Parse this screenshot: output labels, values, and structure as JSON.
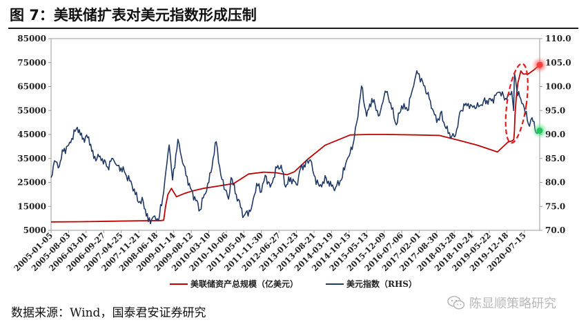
{
  "title": "图 7：美联储扩表对美元指数形成压制",
  "source": "数据来源：Wind，国泰君安证券研究",
  "watermark": "陈显顺策略研究",
  "chart_data": {
    "type": "line",
    "title": "",
    "xlabel": "",
    "y_left": {
      "ylim": [
        5000,
        85000
      ],
      "ticks": [
        "5000",
        "15000",
        "25000",
        "35000",
        "45000",
        "55000",
        "65000",
        "75000",
        "85000"
      ]
    },
    "y_right": {
      "ylim": [
        70.0,
        110.0
      ],
      "ticks": [
        "70.0",
        "75.0",
        "80.0",
        "85.0",
        "90.0",
        "95.0",
        "100.0",
        "105.0",
        "110.0"
      ]
    },
    "x_range": [
      "2005-01-05",
      "2021-01-15"
    ],
    "x_ticks": [
      "2005-01-05",
      "2005-08-03",
      "2006-03-01",
      "2006-09-27",
      "2007-04-25",
      "2007-11-21",
      "2008-06-18",
      "2009-01-14",
      "2009-08-12",
      "2010-03-10",
      "2010-10-06",
      "2011-05-04",
      "2011-11-30",
      "2012-06-27",
      "2013-01-23",
      "2013-08-21",
      "2014-03-19",
      "2014-10-15",
      "2015-05-13",
      "2015-12-09",
      "2016-07-06",
      "2017-02-01",
      "2017-08-30",
      "2018-03-28",
      "2018-10-24",
      "2019-05-22",
      "2019-12-18",
      "2020-07-15"
    ],
    "legend_position": "bottom",
    "series": [
      {
        "name": "美联储资产总规模（亿美元）",
        "axis": "left",
        "color": "#c00000",
        "points": [
          [
            "2005-01-05",
            8500
          ],
          [
            "2006-01-01",
            8600
          ],
          [
            "2007-01-01",
            8800
          ],
          [
            "2008-01-01",
            9000
          ],
          [
            "2008-08-15",
            9100
          ],
          [
            "2008-09-15",
            9200
          ],
          [
            "2008-10-08",
            15000
          ],
          [
            "2008-11-05",
            20000
          ],
          [
            "2008-12-17",
            22500
          ],
          [
            "2009-02-15",
            19000
          ],
          [
            "2009-06-01",
            20500
          ],
          [
            "2009-09-01",
            21500
          ],
          [
            "2010-01-01",
            22500
          ],
          [
            "2010-06-01",
            23300
          ],
          [
            "2011-01-01",
            24500
          ],
          [
            "2011-06-30",
            28500
          ],
          [
            "2012-01-01",
            29300
          ],
          [
            "2012-06-01",
            29000
          ],
          [
            "2012-10-01",
            28200
          ],
          [
            "2013-01-01",
            29500
          ],
          [
            "2013-06-01",
            34500
          ],
          [
            "2014-01-01",
            40500
          ],
          [
            "2014-10-29",
            44800
          ],
          [
            "2015-06-01",
            45000
          ],
          [
            "2016-01-01",
            45000
          ],
          [
            "2017-01-01",
            44800
          ],
          [
            "2017-10-01",
            44600
          ],
          [
            "2018-06-01",
            42500
          ],
          [
            "2019-01-01",
            40500
          ],
          [
            "2019-08-28",
            37700
          ],
          [
            "2019-12-31",
            41800
          ],
          [
            "2020-02-26",
            42400
          ],
          [
            "2020-03-11",
            43000
          ],
          [
            "2020-03-18",
            46500
          ],
          [
            "2020-03-25",
            53000
          ],
          [
            "2020-04-08",
            60000
          ],
          [
            "2020-04-29",
            66500
          ],
          [
            "2020-06-03",
            71500
          ],
          [
            "2020-07-01",
            70200
          ],
          [
            "2020-09-01",
            70300
          ],
          [
            "2020-11-01",
            71800
          ],
          [
            "2021-01-15",
            74000
          ]
        ]
      },
      {
        "name": "美元指数（RHS）",
        "axis": "right",
        "color": "#1f3864",
        "points": [
          [
            "2005-01-05",
            81.0
          ],
          [
            "2005-02-15",
            84.5
          ],
          [
            "2005-04-01",
            83.0
          ],
          [
            "2005-06-01",
            86.5
          ],
          [
            "2005-08-03",
            87.8
          ],
          [
            "2005-11-15",
            91.5
          ],
          [
            "2006-01-15",
            89.0
          ],
          [
            "2006-04-01",
            89.5
          ],
          [
            "2006-06-01",
            85.0
          ],
          [
            "2006-08-15",
            85.5
          ],
          [
            "2006-11-15",
            83.2
          ],
          [
            "2007-01-15",
            85.0
          ],
          [
            "2007-03-15",
            83.5
          ],
          [
            "2007-06-01",
            82.3
          ],
          [
            "2007-09-01",
            79.5
          ],
          [
            "2007-11-21",
            75.8
          ],
          [
            "2008-01-15",
            76.0
          ],
          [
            "2008-03-15",
            71.8
          ],
          [
            "2008-06-01",
            73.0
          ],
          [
            "2008-07-15",
            72.0
          ],
          [
            "2008-09-15",
            78.0
          ],
          [
            "2008-11-20",
            87.8
          ],
          [
            "2008-12-31",
            80.5
          ],
          [
            "2009-03-05",
            89.0
          ],
          [
            "2009-05-01",
            84.0
          ],
          [
            "2009-08-01",
            78.8
          ],
          [
            "2009-11-25",
            74.3
          ],
          [
            "2010-01-15",
            77.5
          ],
          [
            "2010-03-10",
            80.0
          ],
          [
            "2010-06-07",
            88.5
          ],
          [
            "2010-08-01",
            81.5
          ],
          [
            "2010-11-01",
            76.5
          ],
          [
            "2010-12-01",
            81.0
          ],
          [
            "2011-02-01",
            77.5
          ],
          [
            "2011-05-04",
            73.0
          ],
          [
            "2011-08-01",
            74.5
          ],
          [
            "2011-10-04",
            79.8
          ],
          [
            "2011-11-30",
            78.0
          ],
          [
            "2012-01-15",
            81.5
          ],
          [
            "2012-03-15",
            79.0
          ],
          [
            "2012-06-01",
            83.0
          ],
          [
            "2012-07-24",
            83.6
          ],
          [
            "2012-09-15",
            79.0
          ],
          [
            "2012-11-15",
            81.0
          ],
          [
            "2013-01-23",
            79.5
          ],
          [
            "2013-03-15",
            83.0
          ],
          [
            "2013-07-09",
            84.7
          ],
          [
            "2013-08-21",
            81.5
          ],
          [
            "2013-10-25",
            79.2
          ],
          [
            "2014-01-15",
            80.8
          ],
          [
            "2014-03-19",
            79.2
          ],
          [
            "2014-05-06",
            78.9
          ],
          [
            "2014-07-15",
            80.5
          ],
          [
            "2014-09-15",
            84.5
          ],
          [
            "2014-10-15",
            85.5
          ],
          [
            "2014-12-15",
            89.0
          ],
          [
            "2015-01-15",
            92.5
          ],
          [
            "2015-03-13",
            100.1
          ],
          [
            "2015-05-13",
            93.8
          ],
          [
            "2015-07-15",
            97.5
          ],
          [
            "2015-10-15",
            94.0
          ],
          [
            "2015-12-09",
            98.0
          ],
          [
            "2016-01-15",
            99.0
          ],
          [
            "2016-05-03",
            92.0
          ],
          [
            "2016-07-06",
            96.0
          ],
          [
            "2016-09-15",
            95.0
          ],
          [
            "2016-11-15",
            99.5
          ],
          [
            "2017-01-03",
            103.3
          ],
          [
            "2017-03-15",
            101.0
          ],
          [
            "2017-06-15",
            97.0
          ],
          [
            "2017-08-30",
            92.5
          ],
          [
            "2017-10-15",
            94.5
          ],
          [
            "2018-01-15",
            90.2
          ],
          [
            "2018-03-28",
            89.5
          ],
          [
            "2018-04-15",
            90.0
          ],
          [
            "2018-06-15",
            95.0
          ],
          [
            "2018-08-15",
            96.5
          ],
          [
            "2018-10-24",
            96.0
          ],
          [
            "2019-01-15",
            95.8
          ],
          [
            "2019-03-15",
            97.0
          ],
          [
            "2019-06-15",
            97.0
          ],
          [
            "2019-09-15",
            98.8
          ],
          [
            "2019-12-18",
            97.3
          ],
          [
            "2020-02-15",
            99.0
          ],
          [
            "2020-03-09",
            95.0
          ],
          [
            "2020-03-19",
            102.8
          ],
          [
            "2020-04-15",
            99.5
          ],
          [
            "2020-06-01",
            97.5
          ],
          [
            "2020-07-15",
            95.5
          ],
          [
            "2020-09-01",
            92.2
          ],
          [
            "2020-10-15",
            93.5
          ],
          [
            "2020-12-15",
            90.2
          ],
          [
            "2021-01-15",
            90.8
          ]
        ]
      }
    ],
    "annotations": [
      {
        "type": "ellipse",
        "label": "red dashed ellipse around asset jump",
        "color": "#e51b1b",
        "x_center": "2020-04-15",
        "y_center": 58000,
        "axis": "left"
      },
      {
        "type": "marker",
        "series": 0,
        "color": "#ff3b3b",
        "at": "2021-01-15"
      },
      {
        "type": "marker",
        "series": 1,
        "color": "#22c55e",
        "at": "2021-01-15"
      }
    ]
  }
}
